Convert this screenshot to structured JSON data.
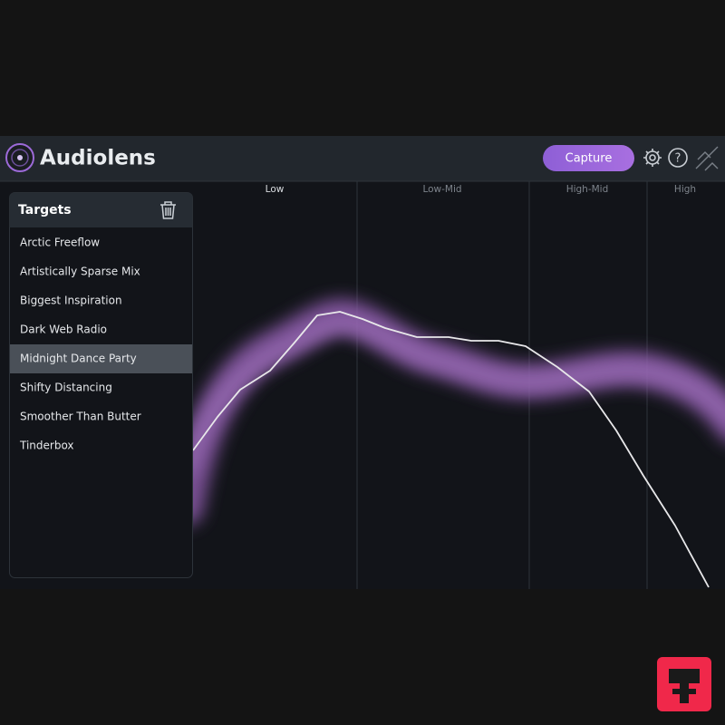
{
  "app": {
    "title": "Audiolens",
    "capture_button": "Capture"
  },
  "bands": [
    "Low",
    "Low-Mid",
    "High-Mid",
    "High"
  ],
  "targets": {
    "title": "Targets",
    "items": [
      "Arctic Freeflow",
      "Artistically Sparse Mix",
      "Biggest Inspiration",
      "Dark Web Radio",
      "Midnight Dance Party",
      "Shifty Distancing",
      "Smoother Than Butter",
      "Tinderbox"
    ],
    "selected": 4
  }
}
